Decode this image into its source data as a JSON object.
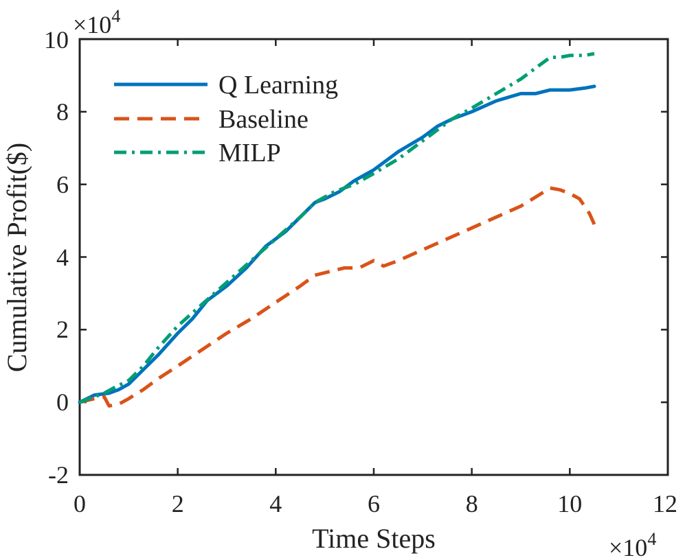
{
  "chart_data": {
    "type": "line",
    "title": "",
    "xlabel": "Time Steps",
    "ylabel": "Cumulative Profit($)",
    "xlim": [
      0,
      12
    ],
    "ylim": [
      -2,
      10
    ],
    "x_multiplier": "×10",
    "y_multiplier": "×10",
    "exponent": "4",
    "x_ticks": [
      "0",
      "2",
      "4",
      "6",
      "8",
      "10",
      "12"
    ],
    "y_ticks": [
      "-2",
      "0",
      "2",
      "4",
      "6",
      "8",
      "10"
    ],
    "legend_position": "top-left",
    "series": [
      {
        "name": "Q Learning",
        "color": "#0072BD",
        "style": "solid",
        "x": [
          0,
          0.3,
          0.6,
          0.8,
          1.0,
          1.3,
          1.6,
          2.0,
          2.3,
          2.6,
          3.0,
          3.4,
          3.8,
          4.2,
          4.5,
          4.8,
          5.0,
          5.3,
          5.6,
          6.0,
          6.5,
          7.0,
          7.3,
          7.6,
          8.0,
          8.5,
          9.0,
          9.3,
          9.6,
          10.0,
          10.3,
          10.5
        ],
        "y": [
          0,
          0.2,
          0.25,
          0.35,
          0.5,
          0.9,
          1.3,
          1.9,
          2.3,
          2.8,
          3.2,
          3.7,
          4.3,
          4.7,
          5.1,
          5.5,
          5.6,
          5.8,
          6.1,
          6.4,
          6.9,
          7.3,
          7.6,
          7.8,
          8.0,
          8.3,
          8.5,
          8.5,
          8.6,
          8.6,
          8.65,
          8.7
        ]
      },
      {
        "name": "Baseline",
        "color": "#D95319",
        "style": "dashed",
        "x": [
          0,
          0.3,
          0.5,
          0.6,
          0.8,
          1.0,
          1.3,
          1.6,
          2.0,
          2.5,
          3.0,
          3.5,
          4.0,
          4.5,
          4.8,
          5.1,
          5.4,
          5.7,
          6.0,
          6.2,
          6.5,
          7.0,
          7.5,
          8.0,
          8.5,
          9.0,
          9.3,
          9.6,
          9.8,
          10.0,
          10.2,
          10.4,
          10.5
        ],
        "y": [
          0,
          0.1,
          0.15,
          -0.1,
          -0.05,
          0.1,
          0.35,
          0.65,
          1.0,
          1.45,
          1.9,
          2.3,
          2.75,
          3.2,
          3.5,
          3.6,
          3.7,
          3.7,
          3.9,
          3.75,
          3.9,
          4.2,
          4.5,
          4.8,
          5.1,
          5.4,
          5.65,
          5.9,
          5.85,
          5.75,
          5.6,
          5.2,
          4.9
        ]
      },
      {
        "name": "MILP",
        "color": "#009E73",
        "style": "dashdot",
        "x": [
          0,
          0.3,
          0.5,
          0.7,
          1.0,
          1.3,
          1.6,
          2.0,
          2.5,
          3.0,
          3.5,
          4.0,
          4.5,
          4.8,
          5.2,
          5.6,
          6.0,
          6.5,
          7.0,
          7.3,
          7.6,
          8.0,
          8.5,
          9.0,
          9.3,
          9.6,
          9.8,
          10.0,
          10.3,
          10.5
        ],
        "y": [
          0,
          0.15,
          0.25,
          0.4,
          0.6,
          1.0,
          1.5,
          2.1,
          2.7,
          3.3,
          3.9,
          4.5,
          5.1,
          5.5,
          5.8,
          6.0,
          6.3,
          6.7,
          7.2,
          7.5,
          7.8,
          8.1,
          8.5,
          8.9,
          9.2,
          9.5,
          9.5,
          9.55,
          9.55,
          9.6
        ]
      }
    ]
  }
}
